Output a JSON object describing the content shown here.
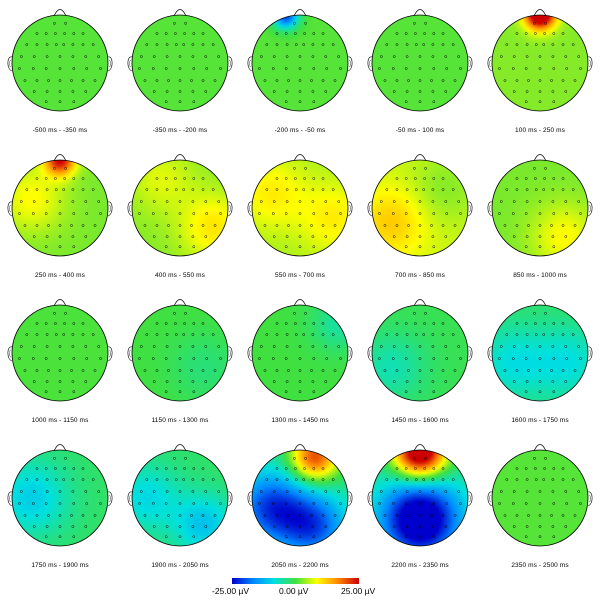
{
  "chart_data": {
    "type": "heatmap",
    "subtype": "scalp-topography-series",
    "grid": {
      "rows": 4,
      "cols": 5
    },
    "unit": "µV",
    "color_scale": {
      "min": -25.0,
      "mid": 0.0,
      "max": 25.0,
      "colormap": "jet",
      "stops": [
        "#0000cc",
        "#0088ff",
        "#00e0e0",
        "#40e040",
        "#ffff00",
        "#ff8800",
        "#cc0000"
      ],
      "tick_labels": [
        "-25.00 µV",
        "0.00 µV",
        "25.00 µV"
      ]
    },
    "panels": [
      {
        "label": "-500 ms - -350 ms",
        "base": 1.0,
        "blobs": []
      },
      {
        "label": "-350 ms - -200 ms",
        "base": 1.0,
        "blobs": []
      },
      {
        "label": "-200 ms - -50 ms",
        "base": 1.0,
        "blobs": [
          {
            "x": -0.3,
            "y": -0.98,
            "value": -22,
            "spread": 0.18
          }
        ]
      },
      {
        "label": "-50 ms - 100 ms",
        "base": 1.0,
        "blobs": []
      },
      {
        "label": "100 ms - 250 ms",
        "base": 3.0,
        "blobs": [
          {
            "x": 0.0,
            "y": -1.02,
            "value": 32,
            "spread": 0.22
          }
        ]
      },
      {
        "label": "250 ms - 400 ms",
        "base": 2.5,
        "blobs": [
          {
            "x": 0.0,
            "y": -1.0,
            "value": 22,
            "spread": 0.22
          },
          {
            "x": -0.6,
            "y": -0.2,
            "value": 6,
            "spread": 0.5
          }
        ]
      },
      {
        "label": "400 ms - 550 ms",
        "base": 3.0,
        "blobs": [
          {
            "x": 0.7,
            "y": 0.4,
            "value": 7,
            "spread": 0.5
          },
          {
            "x": -0.4,
            "y": -0.6,
            "value": 4,
            "spread": 0.5
          }
        ]
      },
      {
        "label": "550 ms - 700 ms",
        "base": 4.5,
        "blobs": [
          {
            "x": -0.6,
            "y": -0.3,
            "value": 5,
            "spread": 0.5
          },
          {
            "x": 0.7,
            "y": 0.2,
            "value": 5,
            "spread": 0.5
          }
        ]
      },
      {
        "label": "700 ms - 850 ms",
        "base": 6.0,
        "blobs": [
          {
            "x": -0.6,
            "y": 0.3,
            "value": 6,
            "spread": 0.5
          },
          {
            "x": 0.5,
            "y": -0.4,
            "value": -3,
            "spread": 0.5
          }
        ]
      },
      {
        "label": "850 ms - 1000 ms",
        "base": 2.5,
        "blobs": [
          {
            "x": 0.5,
            "y": 0.6,
            "value": 6,
            "spread": 0.5
          }
        ]
      },
      {
        "label": "1000 ms - 1150 ms",
        "base": 0.5,
        "blobs": []
      },
      {
        "label": "1150 ms - 1300 ms",
        "base": 0.0,
        "blobs": [
          {
            "x": 0.5,
            "y": 0.3,
            "value": -3,
            "spread": 0.5
          }
        ]
      },
      {
        "label": "1300 ms - 1450 ms",
        "base": 0.0,
        "blobs": [
          {
            "x": 0.8,
            "y": -0.6,
            "value": -5,
            "spread": 0.4
          }
        ]
      },
      {
        "label": "1450 ms - 1600 ms",
        "base": -1.0,
        "blobs": [
          {
            "x": -0.6,
            "y": 0.3,
            "value": -5,
            "spread": 0.5
          }
        ]
      },
      {
        "label": "1600 ms - 1750 ms",
        "base": -2.0,
        "blobs": [
          {
            "x": -0.6,
            "y": 0.2,
            "value": -6,
            "spread": 0.55
          },
          {
            "x": 0.6,
            "y": 0.2,
            "value": -6,
            "spread": 0.55
          }
        ]
      },
      {
        "label": "1750 ms - 1900 ms",
        "base": -2.0,
        "blobs": [
          {
            "x": -0.6,
            "y": 0.0,
            "value": -8,
            "spread": 0.55
          }
        ]
      },
      {
        "label": "1900 ms - 2050 ms",
        "base": -2.0,
        "blobs": [
          {
            "x": -0.7,
            "y": 0.0,
            "value": -7,
            "spread": 0.5
          },
          {
            "x": 0.5,
            "y": 0.55,
            "value": -9,
            "spread": 0.45
          }
        ]
      },
      {
        "label": "2050 ms - 2200 ms",
        "base": -3.0,
        "blobs": [
          {
            "x": 0.3,
            "y": -0.85,
            "value": 24,
            "spread": 0.35
          },
          {
            "x": -0.6,
            "y": 0.2,
            "value": -18,
            "spread": 0.55
          },
          {
            "x": 0.3,
            "y": 0.6,
            "value": -16,
            "spread": 0.5
          }
        ]
      },
      {
        "label": "2200 ms - 2350 ms",
        "base": -3.0,
        "blobs": [
          {
            "x": 0.0,
            "y": -0.95,
            "value": 36,
            "spread": 0.38
          },
          {
            "x": 0.0,
            "y": 0.45,
            "value": -28,
            "spread": 0.6
          }
        ]
      },
      {
        "label": "2350 ms - 2500 ms",
        "base": 1.0,
        "blobs": []
      }
    ]
  }
}
